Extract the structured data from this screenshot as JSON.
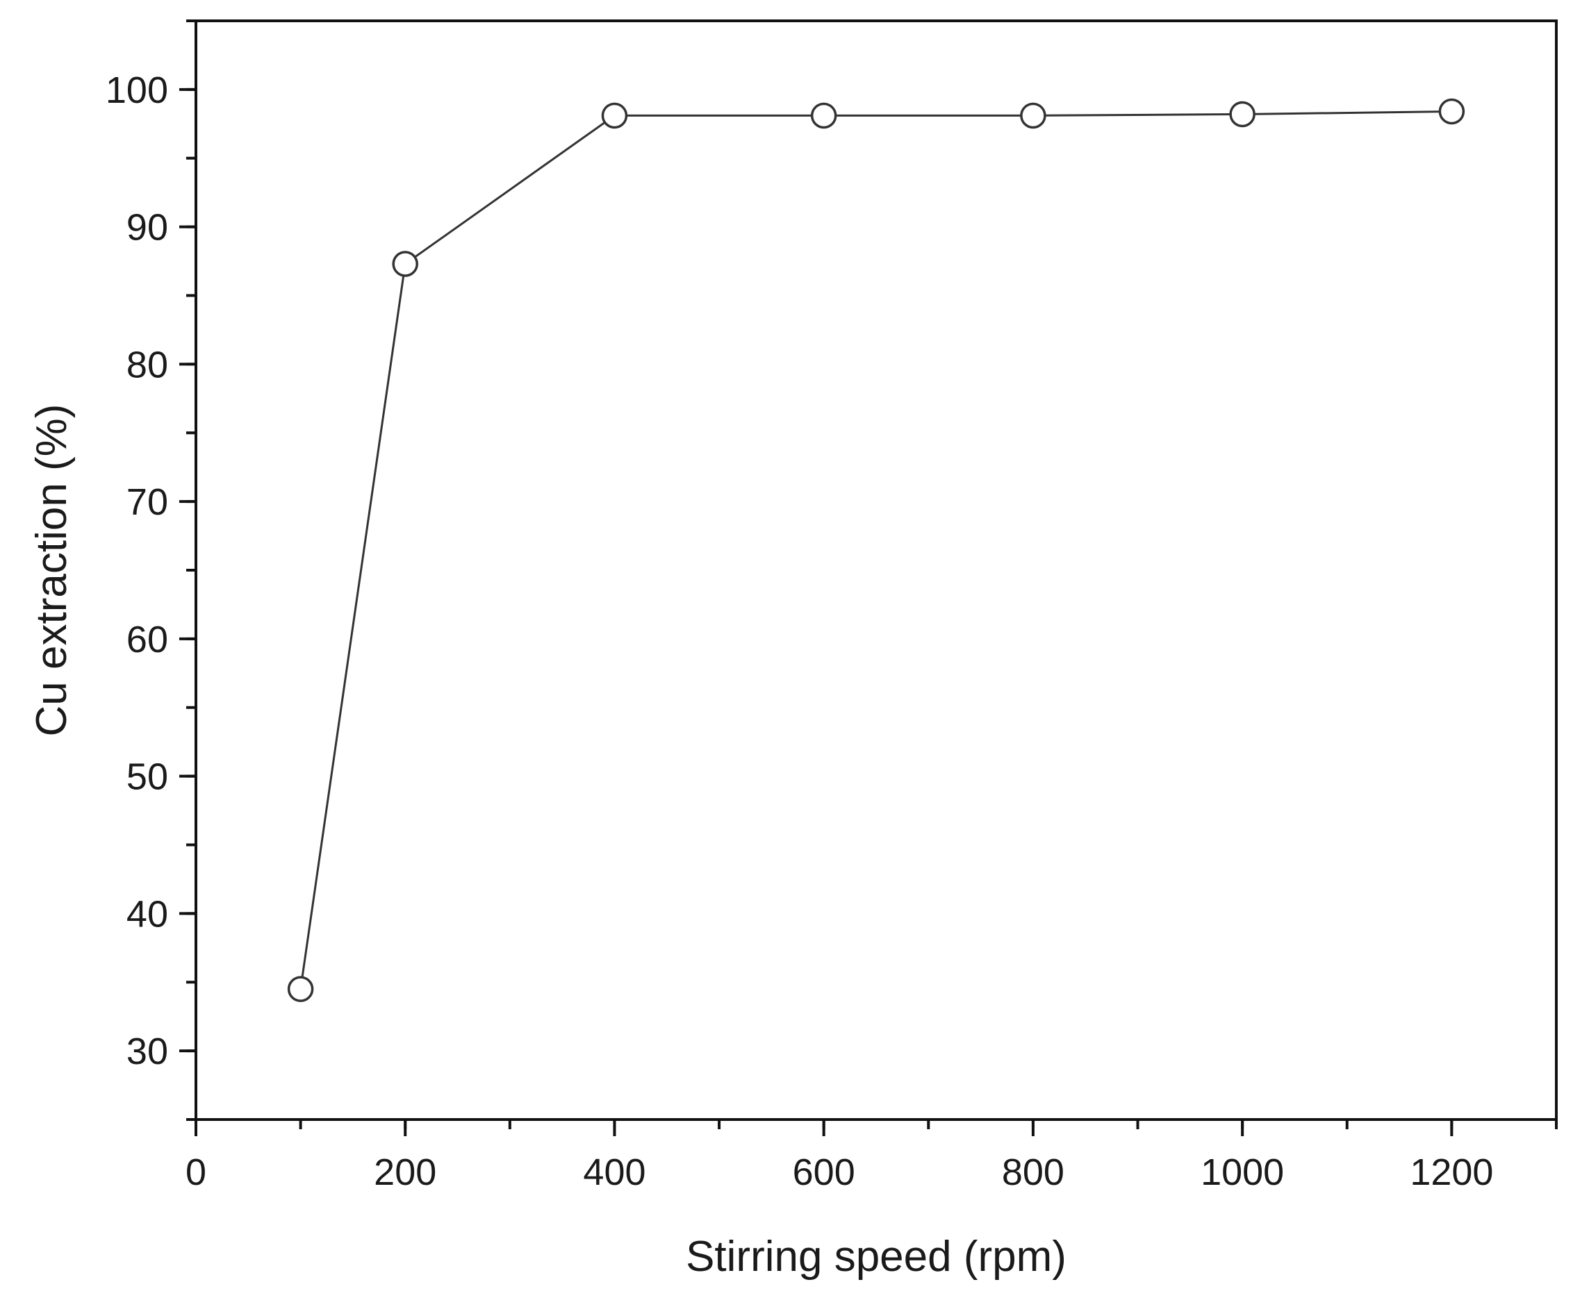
{
  "chart_data": {
    "type": "line",
    "xlabel": "Stirring speed (rpm)",
    "ylabel": "Cu extraction (%)",
    "xlim": [
      0,
      1300
    ],
    "ylim": [
      25,
      105
    ],
    "xticks": [
      0,
      200,
      400,
      600,
      800,
      1000,
      1200
    ],
    "xtick_labels": [
      "0",
      "200",
      "400",
      "600",
      "800",
      "1000",
      "1200"
    ],
    "x_minor_step": 100,
    "yticks": [
      30,
      40,
      50,
      60,
      70,
      80,
      90,
      100
    ],
    "ytick_labels": [
      "30",
      "40",
      "50",
      "60",
      "70",
      "80",
      "90",
      "100"
    ],
    "y_minor_step": 5,
    "grid": false,
    "marker": "open-circle",
    "series": [
      {
        "x": [
          100,
          200,
          400,
          600,
          800,
          1000,
          1200
        ],
        "y": [
          34.5,
          87.3,
          98.1,
          98.1,
          98.1,
          98.2,
          98.4
        ]
      }
    ]
  }
}
